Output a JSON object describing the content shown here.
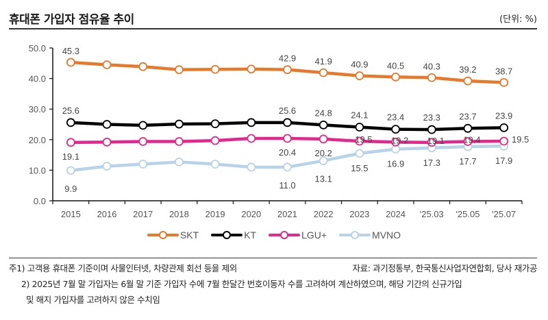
{
  "header": {
    "title": "휴대폰 가입자 점유율 추이",
    "unit": "(단위: %)"
  },
  "colors": {
    "SKT": "#E8792B",
    "KT": "#000000",
    "LGU+": "#E3278D",
    "MVNO": "#B8D2EA"
  },
  "chart_data": {
    "type": "line",
    "title": "휴대폰 가입자 점유율 추이",
    "xlabel": "",
    "ylabel": "(단위: %)",
    "ylim": [
      0,
      50
    ],
    "yticks": [
      "0.0",
      "10.0",
      "20.0",
      "30.0",
      "40.0",
      "50.0"
    ],
    "grid": false,
    "legend_position": "bottom-center",
    "categories": [
      "2015",
      "2016",
      "2017",
      "2018",
      "2019",
      "2020",
      "2021",
      "2022",
      "2023",
      "2024",
      "'25.03",
      "'25.05",
      "'25.07"
    ],
    "series": [
      {
        "name": "SKT",
        "values": [
          45.3,
          44.5,
          43.9,
          42.9,
          43.0,
          43.1,
          42.9,
          41.9,
          40.9,
          40.5,
          40.3,
          39.2,
          38.7
        ],
        "labels": [
          "45.3",
          "",
          "",
          "",
          "",
          "",
          "42.9",
          "41.9",
          "40.9",
          "40.5",
          "40.3",
          "39.2",
          "38.7"
        ]
      },
      {
        "name": "KT",
        "values": [
          25.6,
          25.0,
          24.7,
          25.1,
          25.2,
          25.6,
          25.6,
          24.8,
          24.1,
          23.4,
          23.3,
          23.7,
          23.9
        ],
        "labels": [
          "25.6",
          "",
          "",
          "",
          "",
          "",
          "25.6",
          "24.8",
          "24.1",
          "23.4",
          "23.3",
          "23.7",
          "23.9"
        ]
      },
      {
        "name": "LGU+",
        "values": [
          19.1,
          19.2,
          19.4,
          19.4,
          19.7,
          20.4,
          20.4,
          20.2,
          19.5,
          19.2,
          19.1,
          19.4,
          19.5
        ],
        "labels": [
          "19.1",
          "",
          "",
          "",
          "",
          "",
          "20.4",
          "20.2",
          "19.5",
          "19.2",
          "19.1",
          "19.4",
          "19.5"
        ]
      },
      {
        "name": "MVNO",
        "values": [
          9.9,
          11.3,
          12.0,
          12.7,
          12.0,
          11.0,
          11.0,
          13.1,
          15.5,
          16.9,
          17.3,
          17.7,
          17.9
        ],
        "labels": [
          "9.9",
          "",
          "",
          "",
          "",
          "",
          "11.0",
          "13.1",
          "15.5",
          "16.9",
          "17.3",
          "17.7",
          "17.9"
        ]
      }
    ]
  },
  "footnotes": {
    "note1": "주1) 고객용 휴대폰 기준이며 사물인터넷, 차량관제 회선 등을 제외",
    "source": "자료: 과기정통부, 한국통신사업자연합회, 당사 재가공",
    "note2_line1": "2) 2025년 7월 말 가입자는 6월 말 기준 가입자 수에 7월 한달간 번호이동자 수를 고려하여 계산하였으며, 해당 기간의 신규가입",
    "note2_line2": "및 해지 가입자를 고려하지 않은 수치임"
  }
}
